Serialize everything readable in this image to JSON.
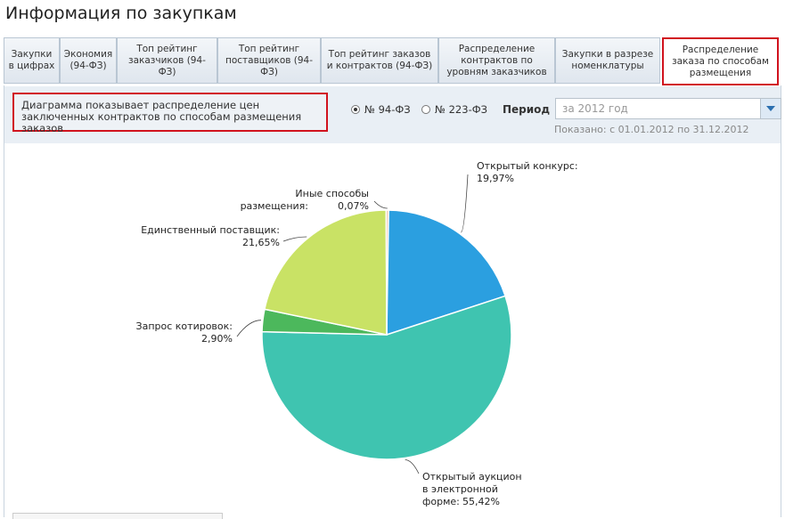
{
  "header": {
    "title": "Информация по закупкам"
  },
  "tabs": [
    {
      "label": "Закупки в цифрах",
      "active": false
    },
    {
      "label": "Экономия (94-ФЗ)",
      "active": false
    },
    {
      "label": "Топ рейтинг заказчиков (94-ФЗ)",
      "active": false
    },
    {
      "label": "Топ рейтинг поставщиков (94-ФЗ)",
      "active": false
    },
    {
      "label": "Топ рейтинг заказов и контрактов (94-ФЗ)",
      "active": false
    },
    {
      "label": "Распределение контрактов по уровням заказчиков",
      "active": false
    },
    {
      "label": "Закупки в разрезе номенклатуры",
      "active": false
    },
    {
      "label": "Распределение заказа по способам размещения",
      "active": true
    }
  ],
  "toolbar": {
    "description": "Диаграмма показывает распределение цен заключенных контрактов по способам размещения заказов",
    "radio_94": "№ 94-ФЗ",
    "radio_223": "№ 223-ФЗ",
    "selected_law": "94-ФЗ",
    "period_label": "Период",
    "period_value": "за 2012 год",
    "shown_text": "Показано: с 01.01.2012 по 31.12.2012"
  },
  "colors": {
    "accent_red": "#d1131e",
    "open_contest": "#2b9fe0",
    "electronic_auction": "#3fc4b0",
    "quotation": "#4cb85c",
    "single_supplier": "#c9e265",
    "other": "#f2c8b0"
  },
  "chart_data": {
    "type": "pie",
    "slices": [
      {
        "name": "Открытый конкурс:",
        "value": 19.97,
        "label": "19,97%",
        "color": "#2b9fe0"
      },
      {
        "name": "Открытый аукцион в электронной форме:",
        "value": 55.42,
        "label": "55,42%",
        "color": "#3fc4b0"
      },
      {
        "name": "Запрос котировок:",
        "value": 2.9,
        "label": "2,90%",
        "color": "#4cb85c"
      },
      {
        "name": "Единственный поставщик:",
        "value": 21.65,
        "label": "21,65%",
        "color": "#c9e265"
      },
      {
        "name": "Иные способы размещения:",
        "value": 0.07,
        "label": "0,07%",
        "color": "#f2c8b0"
      }
    ]
  }
}
